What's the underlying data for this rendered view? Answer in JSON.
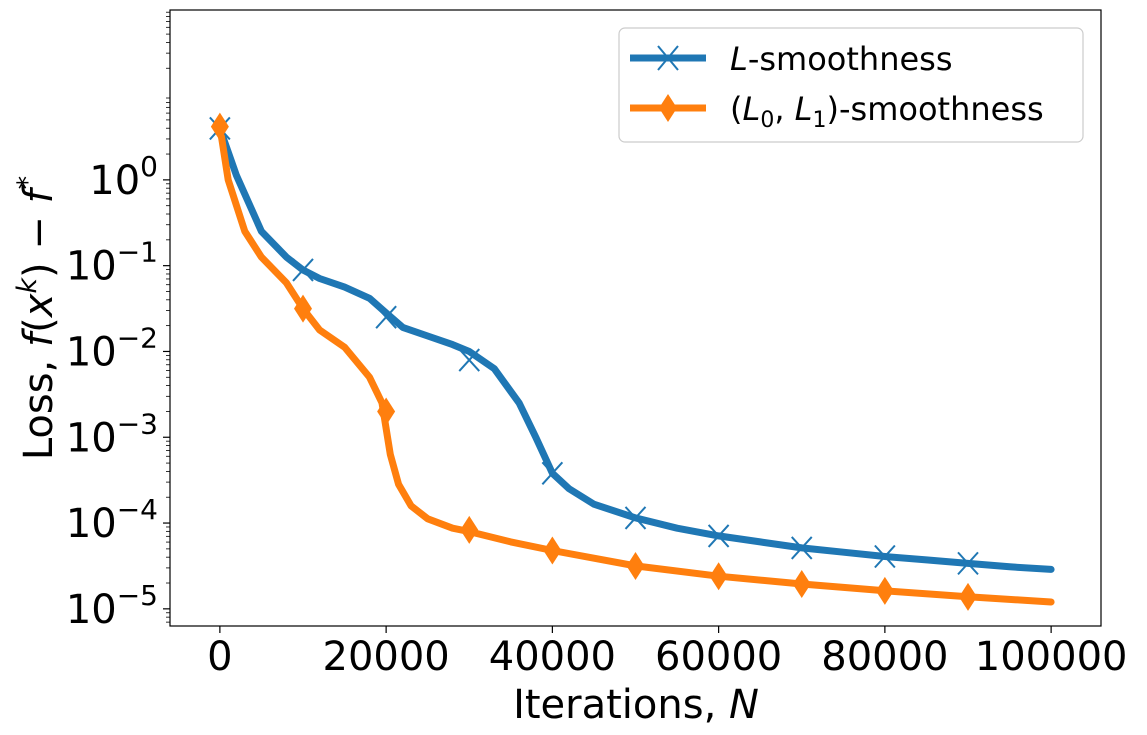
{
  "chart_data": {
    "type": "line",
    "yscale": "log",
    "xlabel": "Iterations, N",
    "ylabel": "Loss, f(x^k) − f*",
    "xlim": [
      -6000,
      106000
    ],
    "ylim_log10": [
      -5.2,
      1.98
    ],
    "x_ticks": [
      0,
      20000,
      40000,
      60000,
      80000,
      100000
    ],
    "y_ticks_log10": [
      0,
      -1,
      -2,
      -3,
      -4,
      -5
    ],
    "x_tick_labels": [
      "0",
      "20000",
      "40000",
      "60000",
      "80000",
      "100000"
    ],
    "y_tick_base": "10",
    "y_tick_exponents": [
      "0",
      "−1",
      "−2",
      "−3",
      "−4",
      "−5"
    ],
    "legend_position": "upper right",
    "series": [
      {
        "name": "L-smoothness",
        "color": "#1f77b4",
        "marker": "x",
        "x": [
          0,
          2000,
          5000,
          8000,
          10000,
          12000,
          15000,
          18000,
          20000,
          22000,
          25000,
          28000,
          30000,
          33000,
          36000,
          38000,
          40000,
          42000,
          45000,
          50000,
          55000,
          60000,
          65000,
          70000,
          75000,
          80000,
          85000,
          90000,
          95000,
          100000
        ],
        "log10y": [
          0.6,
          0.05,
          -0.6,
          -0.9,
          -1.05,
          -1.15,
          -1.25,
          -1.38,
          -1.55,
          -1.72,
          -1.82,
          -1.92,
          -2.0,
          -2.2,
          -2.6,
          -3.0,
          -3.42,
          -3.6,
          -3.78,
          -3.94,
          -4.06,
          -4.15,
          -4.22,
          -4.29,
          -4.34,
          -4.39,
          -4.43,
          -4.47,
          -4.51,
          -4.54
        ],
        "marker_x": [
          0,
          10000,
          20000,
          30000,
          40000,
          50000,
          60000,
          70000,
          80000,
          90000
        ],
        "marker_log10y": [
          0.6,
          -1.05,
          -1.6,
          -2.1,
          -3.42,
          -3.94,
          -4.15,
          -4.29,
          -4.39,
          -4.47
        ]
      },
      {
        "name": "(L0, L1)-smoothness",
        "color": "#ff7f0e",
        "marker": "d",
        "x": [
          0,
          1000,
          3000,
          5000,
          8000,
          10000,
          12000,
          15000,
          18000,
          19500,
          20500,
          21500,
          23000,
          25000,
          28000,
          30000,
          35000,
          40000,
          50000,
          60000,
          70000,
          80000,
          90000,
          100000
        ],
        "log10y": [
          0.62,
          0.0,
          -0.6,
          -0.9,
          -1.2,
          -1.5,
          -1.75,
          -1.95,
          -2.3,
          -2.6,
          -3.2,
          -3.55,
          -3.8,
          -3.95,
          -4.06,
          -4.1,
          -4.22,
          -4.32,
          -4.5,
          -4.62,
          -4.71,
          -4.79,
          -4.86,
          -4.92
        ],
        "marker_x": [
          0,
          10000,
          20000,
          30000,
          40000,
          50000,
          60000,
          70000,
          80000,
          90000
        ],
        "marker_log10y": [
          0.62,
          -1.5,
          -2.7,
          -4.08,
          -4.32,
          -4.5,
          -4.62,
          -4.71,
          -4.79,
          -4.86
        ]
      }
    ],
    "legend_entries": [
      {
        "text_main": "L",
        "text_suffix": "-smoothness"
      },
      {
        "text_prefix": "(",
        "l0": "L",
        "l0_sub": "0",
        "comma": ", ",
        "l1": "L",
        "l1_sub": "1",
        "text_suffix": ")-smoothness"
      }
    ],
    "xlabel_parts": {
      "text": "Iterations, ",
      "var": "N"
    },
    "ylabel_parts": {
      "text": "Loss, ",
      "f": "f",
      "paren_open": "(",
      "x": "x",
      "k": "k",
      "paren_close": ")",
      "minus": " − ",
      "fstar": "f",
      "star": "*"
    }
  }
}
